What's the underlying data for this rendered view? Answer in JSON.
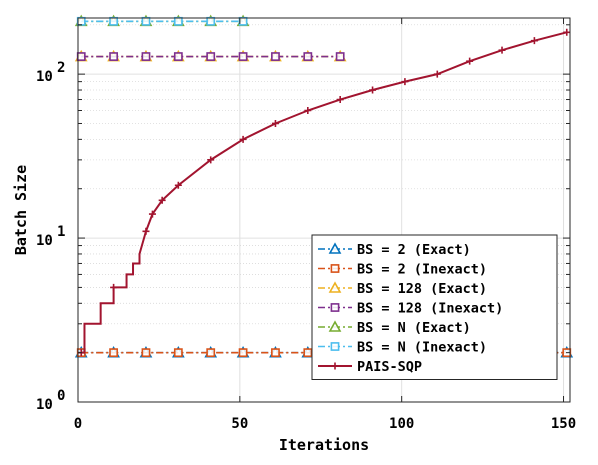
{
  "chart_data": {
    "type": "line",
    "xlabel": "Iterations",
    "ylabel": "Batch Size",
    "xlim": [
      0,
      152
    ],
    "ylim": [
      1,
      220
    ],
    "yscale": "log",
    "grid": true,
    "legend_position": "bottom-right",
    "x_ticks": [
      0,
      50,
      100,
      150
    ],
    "x_tick_labels": [
      "0",
      "50",
      "100",
      "150"
    ],
    "y_ticks": [
      1,
      10,
      100
    ],
    "y_tick_labels": [
      {
        "base": "10",
        "exp": "0"
      },
      {
        "base": "10",
        "exp": "1"
      },
      {
        "base": "10",
        "exp": "2"
      }
    ],
    "series": [
      {
        "name": "BS = 2 (Exact)",
        "color": "#0072BD",
        "line": "dashdot",
        "marker": "triangle",
        "x": [
          1,
          11,
          21,
          31,
          41,
          51,
          61,
          71,
          81,
          91,
          101,
          111,
          121,
          131,
          141,
          151
        ],
        "y": [
          2,
          2,
          2,
          2,
          2,
          2,
          2,
          2,
          2,
          2,
          2,
          2,
          2,
          2,
          2,
          2
        ]
      },
      {
        "name": "BS = 2 (Inexact)",
        "color": "#D95319",
        "line": "dashdot",
        "marker": "square",
        "x": [
          1,
          11,
          21,
          31,
          41,
          51,
          61,
          71,
          81,
          91,
          101,
          111,
          121,
          131,
          141,
          151
        ],
        "y": [
          2,
          2,
          2,
          2,
          2,
          2,
          2,
          2,
          2,
          2,
          2,
          2,
          2,
          2,
          2,
          2
        ]
      },
      {
        "name": "BS = 128 (Exact)",
        "color": "#EDB120",
        "line": "dashdot",
        "marker": "triangle",
        "x": [
          1,
          11,
          21,
          31,
          41,
          51,
          61,
          71,
          81
        ],
        "y": [
          128,
          128,
          128,
          128,
          128,
          128,
          128,
          128,
          128
        ]
      },
      {
        "name": "BS = 128 (Inexact)",
        "color": "#7E2F8E",
        "line": "dashdot",
        "marker": "square",
        "x": [
          1,
          11,
          21,
          31,
          41,
          51,
          61,
          71,
          81
        ],
        "y": [
          128,
          128,
          128,
          128,
          128,
          128,
          128,
          128,
          128
        ]
      },
      {
        "name": "BS = N (Exact)",
        "color": "#77AC30",
        "line": "dashdot",
        "marker": "triangle",
        "x": [
          1,
          11,
          21,
          31,
          41,
          51
        ],
        "y": [
          210,
          210,
          210,
          210,
          210,
          210
        ]
      },
      {
        "name": "BS = N (Inexact)",
        "color": "#4DBEEE",
        "line": "dashdot",
        "marker": "square",
        "x": [
          1,
          11,
          21,
          31,
          41,
          51
        ],
        "y": [
          210,
          210,
          210,
          210,
          210,
          210
        ]
      },
      {
        "name": "PAIS-SQP",
        "color": "#A2142F",
        "line": "solid",
        "marker": "plus",
        "x": [
          1,
          2,
          3,
          4,
          5,
          6,
          7,
          8,
          9,
          10,
          11,
          12,
          13,
          14,
          15,
          16,
          17,
          18,
          19,
          21,
          23,
          26,
          31,
          41,
          51,
          61,
          71,
          81,
          91,
          101,
          111,
          121,
          131,
          141,
          151
        ],
        "y": [
          2,
          3,
          3,
          3,
          3,
          3,
          4,
          4,
          4,
          4,
          5,
          5,
          5,
          5,
          6,
          6,
          7,
          7,
          8,
          11,
          14,
          17,
          21,
          30,
          40,
          50,
          60,
          70,
          80,
          90,
          100,
          120,
          140,
          160,
          180
        ]
      }
    ]
  }
}
